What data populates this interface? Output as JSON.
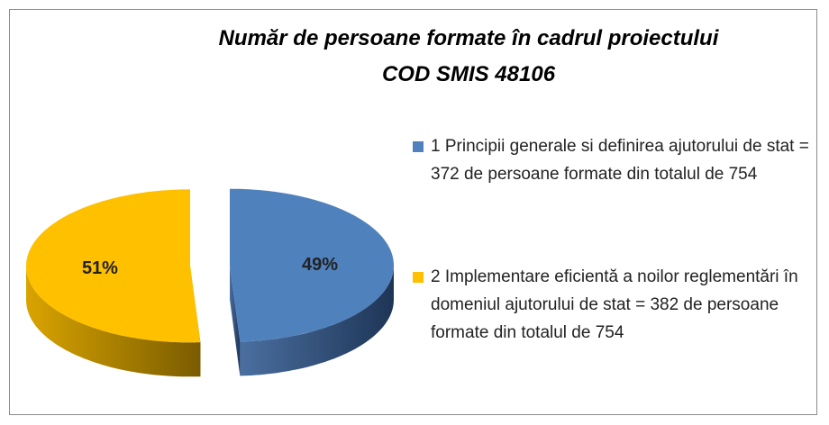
{
  "chart_data": {
    "type": "pie",
    "title": [
      "Număr de persoane formate în cadrul proiectului",
      "COD SMIS 48106"
    ],
    "categories": [
      "1 Principii generale si definirea ajutorului de stat = 372 de persoane formate din totalul de 754",
      "2 Implementare eficientă a noilor reglementări în domeniul ajutorului de stat = 382 de persoane formate din totalul de 754"
    ],
    "values": [
      49,
      51
    ],
    "value_labels": [
      "49%",
      "51%"
    ],
    "colors": [
      "#4f81bd",
      "#ffc000"
    ],
    "legend": "right"
  }
}
